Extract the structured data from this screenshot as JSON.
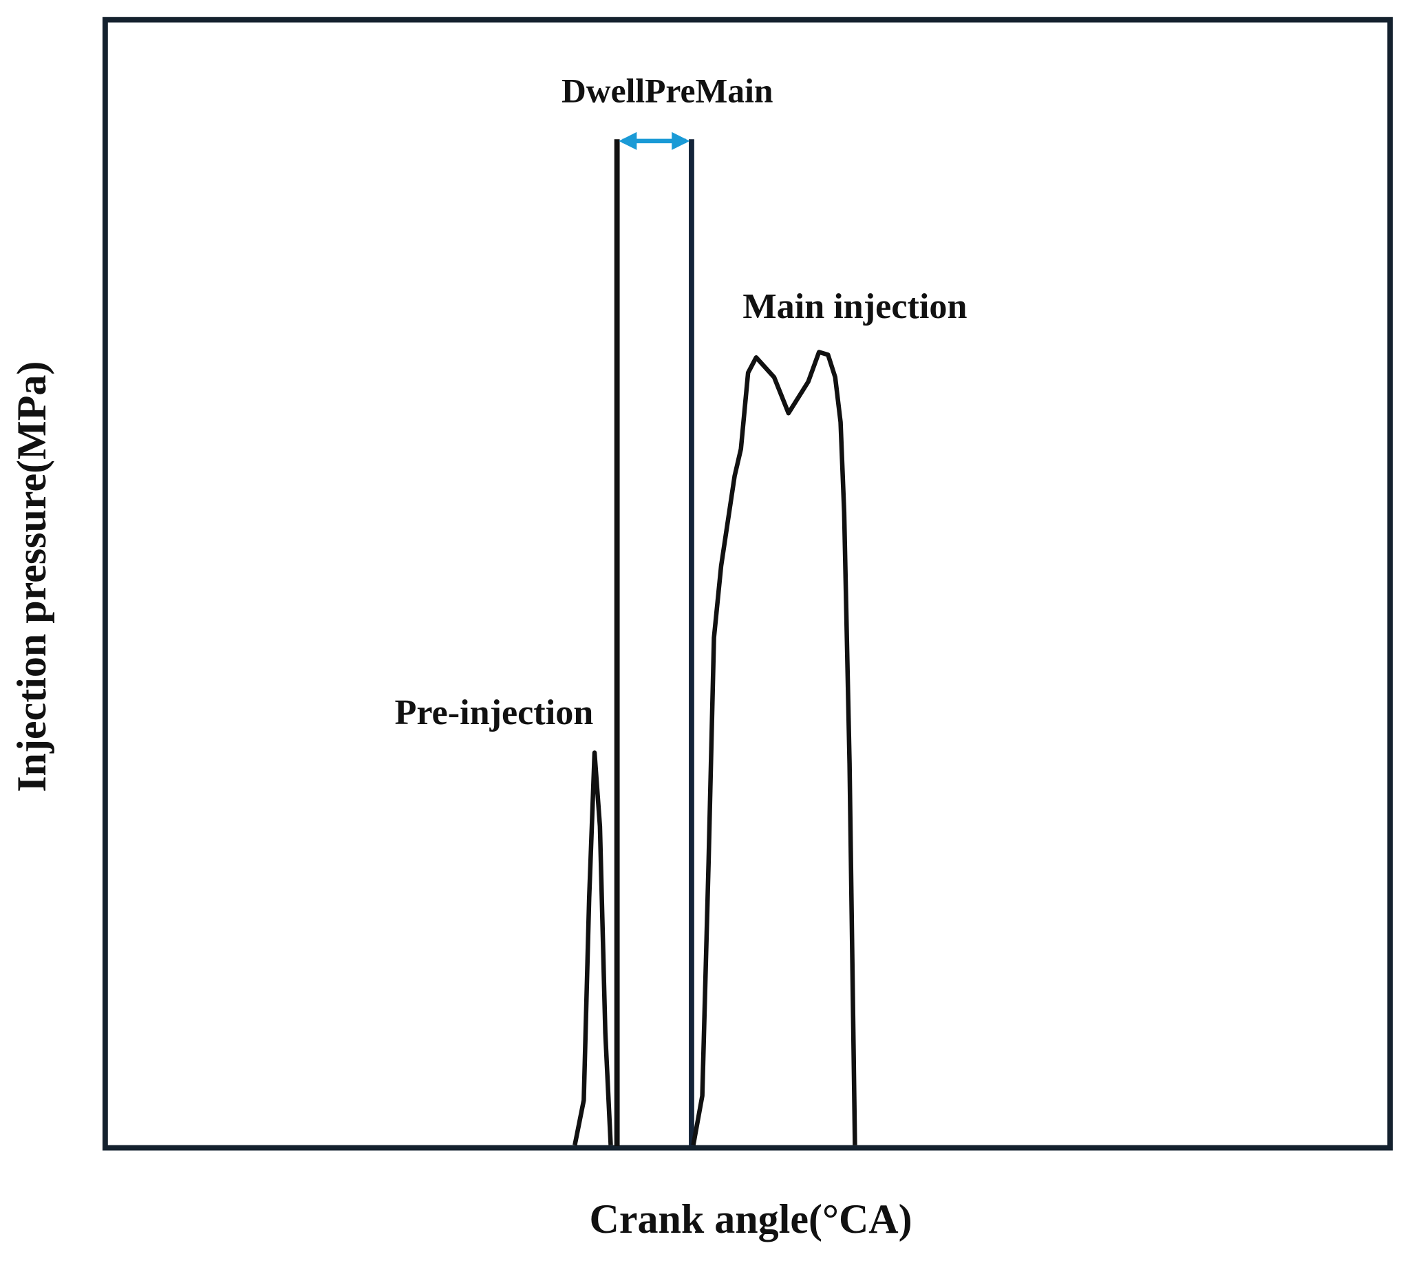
{
  "annotations": {
    "dwell": "DwellPreMain",
    "main": "Main injection",
    "pre": "Pre-injection"
  },
  "axes": {
    "x_label": "Crank angle(°CA)",
    "y_label": "Injection pressure(MPa)"
  }
}
